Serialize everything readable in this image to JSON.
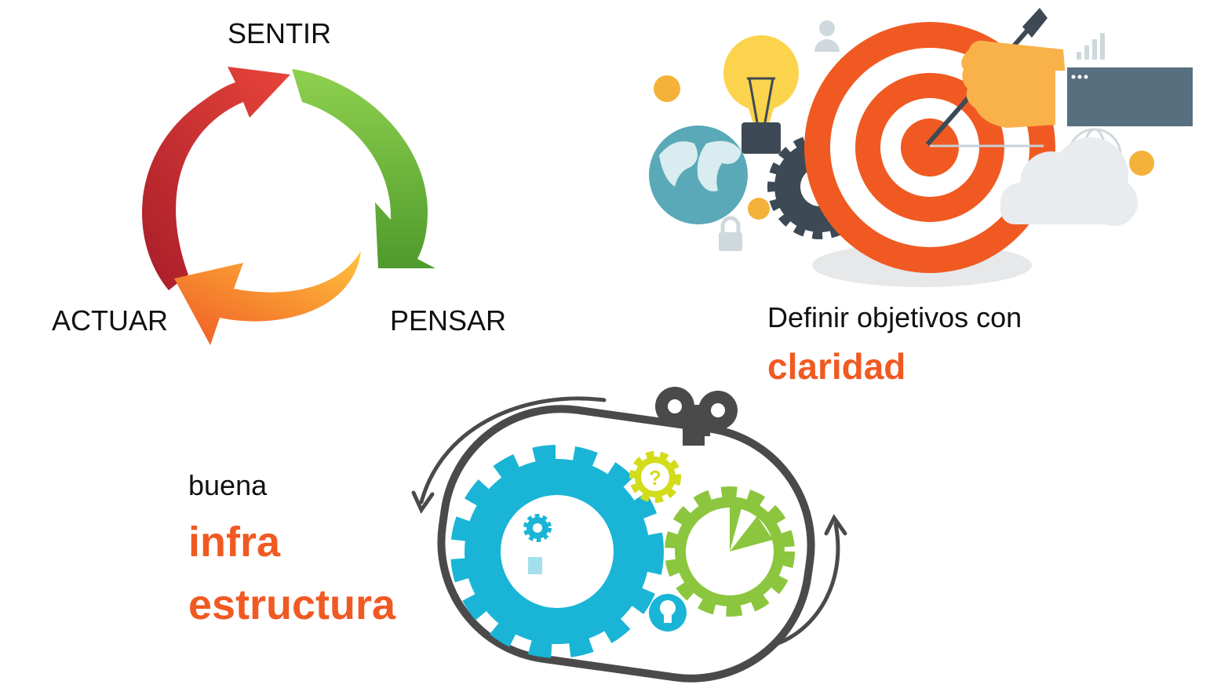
{
  "cycle": {
    "labels": {
      "top": "SENTIR",
      "left": "ACTUAR",
      "right": "PENSAR"
    },
    "colors": {
      "red": "#d9342b",
      "green": "#6ab536",
      "orange": "#f7941d"
    }
  },
  "target_panel": {
    "text_line1": "Definir objetivos con",
    "text_highlight": "claridad",
    "icons": [
      "light-bulb-icon",
      "globe-icon",
      "gear-icon",
      "target-icon",
      "dart-icon",
      "hand-icon",
      "cloud-icon",
      "coin-icon",
      "lock-icon",
      "user-icon",
      "bar-chart-icon",
      "globe-wire-icon"
    ],
    "colors": {
      "target": "#f05a22",
      "bulb": "#fcd34d",
      "globe": "#5aa9b8",
      "gear": "#3d4a55",
      "sleeve": "#56707f"
    }
  },
  "infra_panel": {
    "text_line1": "buena",
    "text_line2": "infra",
    "text_line3": "estructura",
    "icons": [
      "blue-gear-icon",
      "green-gear-icon",
      "question-gear-icon",
      "winding-key-icon",
      "bulb-circle-icon",
      "cycle-arrow-icon"
    ],
    "colors": {
      "blue": "#1ab5d6",
      "green": "#8cc63f",
      "yellow": "#d3dc1a",
      "dark": "#4a4a4a",
      "accent": "#f05a22"
    }
  }
}
